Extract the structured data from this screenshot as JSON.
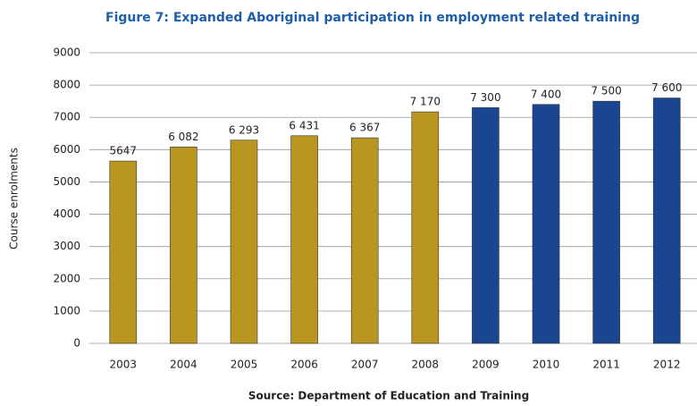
{
  "chart_data": {
    "type": "bar",
    "title": "Figure 7: Expanded Aboriginal participation in employment related training",
    "y_label": "Course enrolments",
    "source": "Source: Department of Education and Training",
    "categories": [
      "2003",
      "2004",
      "2005",
      "2006",
      "2007",
      "2008",
      "2009",
      "2010",
      "2011",
      "2012"
    ],
    "values": [
      5647,
      6082,
      6293,
      6431,
      6367,
      7170,
      7300,
      7400,
      7500,
      7600
    ],
    "value_labels": [
      "5647",
      "6 082",
      "6 293",
      "6 431",
      "6 367",
      "7 170",
      "7 300",
      "7 400",
      "7 500",
      "7 600"
    ],
    "colors": [
      "#b8961f",
      "#b8961f",
      "#b8961f",
      "#b8961f",
      "#b8961f",
      "#b8961f",
      "#1a4590",
      "#1a4590",
      "#1a4590",
      "#1a4590"
    ],
    "ylim": [
      0,
      9000
    ],
    "yticks": [
      0,
      1000,
      2000,
      3000,
      4000,
      5000,
      6000,
      7000,
      8000,
      9000
    ],
    "grid": true
  }
}
